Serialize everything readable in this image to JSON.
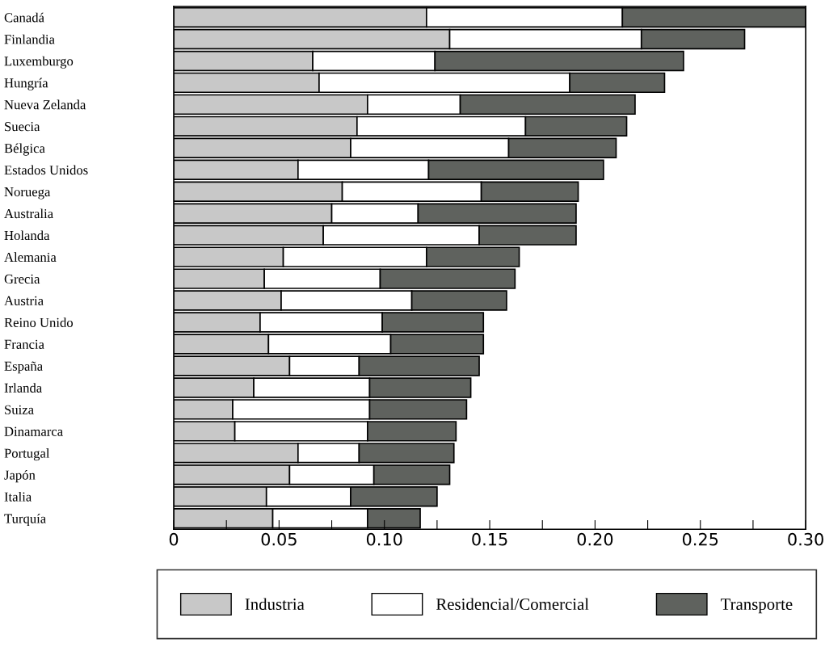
{
  "chart_data": {
    "type": "bar",
    "orientation": "horizontal",
    "stacked": true,
    "legend": "bottom",
    "grid": false,
    "categories": [
      "Canadá",
      "Finlandia",
      "Luxemburgo",
      "Hungría",
      "Nueva Zelanda",
      "Suecia",
      "Bélgica",
      "Estados Unidos",
      "Noruega",
      "Australia",
      "Holanda",
      "Alemania",
      "Grecia",
      "Austria",
      "Reino Unido",
      "Francia",
      "España",
      "Irlanda",
      "Suiza",
      "Dinamarca",
      "Portugal",
      "Japón",
      "Italia",
      "Turquía"
    ],
    "series": [
      {
        "name": "Industria",
        "color": "#c8c8c8",
        "values": [
          0.12,
          0.131,
          0.066,
          0.069,
          0.092,
          0.087,
          0.084,
          0.059,
          0.08,
          0.075,
          0.071,
          0.052,
          0.043,
          0.051,
          0.041,
          0.045,
          0.055,
          0.038,
          0.028,
          0.029,
          0.059,
          0.055,
          0.044,
          0.047
        ]
      },
      {
        "name": "Residencial/Comercial",
        "color": "#ffffff",
        "values": [
          0.093,
          0.091,
          0.058,
          0.119,
          0.044,
          0.08,
          0.075,
          0.062,
          0.066,
          0.041,
          0.074,
          0.068,
          0.055,
          0.062,
          0.058,
          0.058,
          0.033,
          0.055,
          0.065,
          0.063,
          0.029,
          0.04,
          0.04,
          0.045
        ]
      },
      {
        "name": "Transporte",
        "color": "#5f625e",
        "values": [
          0.087,
          0.049,
          0.118,
          0.045,
          0.083,
          0.048,
          0.051,
          0.083,
          0.046,
          0.075,
          0.046,
          0.044,
          0.064,
          0.045,
          0.048,
          0.044,
          0.057,
          0.048,
          0.046,
          0.042,
          0.045,
          0.036,
          0.041,
          0.025
        ]
      }
    ],
    "xlim": [
      0,
      0.3
    ],
    "xticks": [
      0,
      {
        "value": 0.025,
        "label": null
      },
      0.05,
      {
        "value": 0.075,
        "label": null
      },
      {
        "value": 0.1,
        "label": "0.10"
      },
      {
        "value": 0.125,
        "label": null
      },
      0.15,
      {
        "value": 0.175,
        "label": null
      },
      {
        "value": 0.2,
        "label": "0.20"
      },
      {
        "value": 0.225,
        "label": null
      },
      0.25,
      {
        "value": 0.275,
        "label": null
      },
      {
        "value": 0.3,
        "label": "0.30"
      }
    ]
  }
}
